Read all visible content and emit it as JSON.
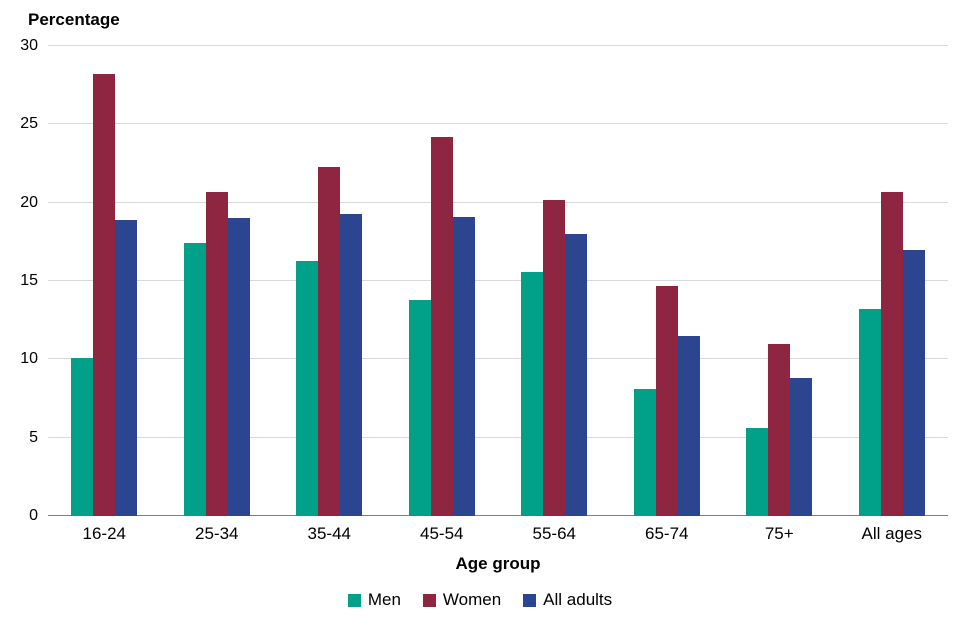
{
  "chart_data": {
    "type": "bar",
    "title": "Percentage",
    "xlabel": "Age group",
    "ylabel": "Percentage",
    "ylim": [
      0,
      30
    ],
    "ytick_step": 5,
    "grid": true,
    "legend_position": "bottom",
    "categories": [
      "16-24",
      "25-34",
      "35-44",
      "45-54",
      "55-64",
      "65-74",
      "75+",
      "All ages"
    ],
    "series": [
      {
        "name": "Men",
        "color": "#00a188",
        "values": [
          10.1,
          17.4,
          16.3,
          13.8,
          15.6,
          8.1,
          5.6,
          13.2
        ]
      },
      {
        "name": "Women",
        "color": "#8e2642",
        "values": [
          28.2,
          20.7,
          22.3,
          24.2,
          20.2,
          14.7,
          11.0,
          20.7
        ]
      },
      {
        "name": "All adults",
        "color": "#2b4590",
        "values": [
          18.9,
          19.0,
          19.3,
          19.1,
          18.0,
          11.5,
          8.8,
          17.0
        ]
      }
    ]
  }
}
